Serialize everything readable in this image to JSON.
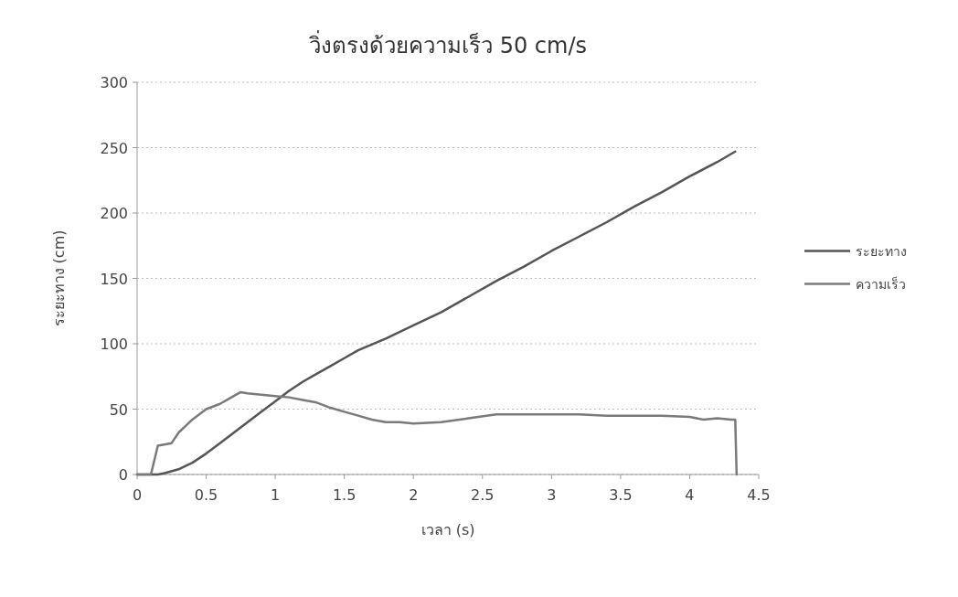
{
  "chart_data": {
    "type": "line",
    "title": "วิ่งตรงด้วยความเร็ว 50 cm/s",
    "xlabel": "เวลา (s)",
    "ylabel": "ระยะทาง (cm)",
    "xlim": [
      0,
      4.5
    ],
    "xticks": [
      0,
      0.5,
      1,
      1.5,
      2,
      2.5,
      3,
      3.5,
      4,
      4.5
    ],
    "ylim": [
      0,
      300
    ],
    "yticks": [
      0,
      50,
      100,
      150,
      200,
      250,
      300
    ],
    "grid": "y",
    "legend": "right",
    "series": [
      {
        "name": "ระยะทาง",
        "color": "#555555",
        "x": [
          0,
          0.15,
          0.2,
          0.3,
          0.4,
          0.5,
          0.6,
          0.7,
          0.8,
          0.9,
          1.0,
          1.1,
          1.2,
          1.3,
          1.4,
          1.5,
          1.6,
          1.8,
          2.0,
          2.2,
          2.4,
          2.6,
          2.8,
          3.0,
          3.2,
          3.4,
          3.6,
          3.8,
          4.0,
          4.2,
          4.33
        ],
        "values": [
          0,
          0,
          1,
          4,
          9,
          16,
          24,
          32,
          40,
          48,
          56,
          64,
          71,
          77,
          83,
          89,
          95,
          104,
          114,
          124,
          136,
          148,
          159,
          171,
          182,
          193,
          205,
          216,
          228,
          239,
          247
        ]
      },
      {
        "name": "ความเร็ว",
        "color": "#7a7a7a",
        "x": [
          0,
          0.1,
          0.15,
          0.25,
          0.3,
          0.4,
          0.5,
          0.6,
          0.7,
          0.75,
          0.8,
          0.9,
          1.0,
          1.1,
          1.2,
          1.3,
          1.4,
          1.5,
          1.6,
          1.7,
          1.8,
          1.9,
          2.0,
          2.2,
          2.4,
          2.6,
          2.8,
          3.0,
          3.2,
          3.4,
          3.6,
          3.8,
          4.0,
          4.1,
          4.2,
          4.3,
          4.33,
          4.34
        ],
        "values": [
          0,
          0,
          22,
          24,
          32,
          42,
          50,
          54,
          60,
          63,
          62,
          61,
          60,
          59,
          57,
          55,
          51,
          48,
          45,
          42,
          40,
          40,
          39,
          40,
          43,
          46,
          46,
          46,
          46,
          45,
          45,
          45,
          44,
          42,
          43,
          42,
          42,
          0
        ]
      }
    ]
  }
}
